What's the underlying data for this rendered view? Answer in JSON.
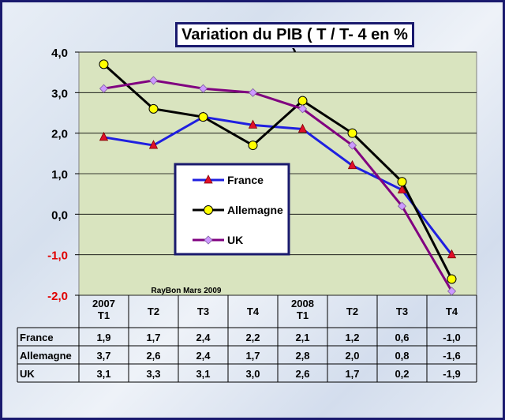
{
  "chart_data": {
    "type": "line",
    "title": "Variation du PIB ( T / T- 4 en % )",
    "categories": [
      [
        "2007",
        "T1"
      ],
      [
        "T2"
      ],
      [
        "T3"
      ],
      [
        "T4"
      ],
      [
        "2008",
        "T1"
      ],
      [
        "T2"
      ],
      [
        "T3"
      ],
      [
        "T4"
      ]
    ],
    "ylim": [
      -2,
      4
    ],
    "yticks": [
      "-2,0",
      "-1,0",
      "0,0",
      "1,0",
      "2,0",
      "3,0",
      "4,0"
    ],
    "grid": true,
    "legend_position": "center-left",
    "annotation": "RayBon  Mars 2009",
    "series": [
      {
        "name": "France",
        "values": [
          1.9,
          1.7,
          2.4,
          2.2,
          2.1,
          1.2,
          0.6,
          -1.0
        ],
        "labels": [
          "1,9",
          "1,7",
          "2,4",
          "2,2",
          "2,1",
          "1,2",
          "0,6",
          "-1,0"
        ],
        "color": "#1f1fe0",
        "marker": "triangle",
        "marker_color": "#e0102a"
      },
      {
        "name": "Allemagne",
        "values": [
          3.7,
          2.6,
          2.4,
          1.7,
          2.8,
          2.0,
          0.8,
          -1.6
        ],
        "labels": [
          "3,7",
          "2,6",
          "2,4",
          "1,7",
          "2,8",
          "2,0",
          "0,8",
          "-1,6"
        ],
        "color": "#000000",
        "marker": "circle",
        "marker_color": "#ffff00"
      },
      {
        "name": "UK",
        "values": [
          3.1,
          3.3,
          3.1,
          3.0,
          2.6,
          1.7,
          0.2,
          -1.9
        ],
        "labels": [
          "3,1",
          "3,3",
          "3,1",
          "3,0",
          "2,6",
          "1,7",
          "0,2",
          "-1,9"
        ],
        "color": "#800080",
        "marker": "diamond",
        "marker_color": "#cc99ff"
      }
    ]
  },
  "colors": {
    "plot_bg": "#d9e4bf",
    "negative_tick": "#e00000",
    "frame": "#1a1a6e"
  }
}
